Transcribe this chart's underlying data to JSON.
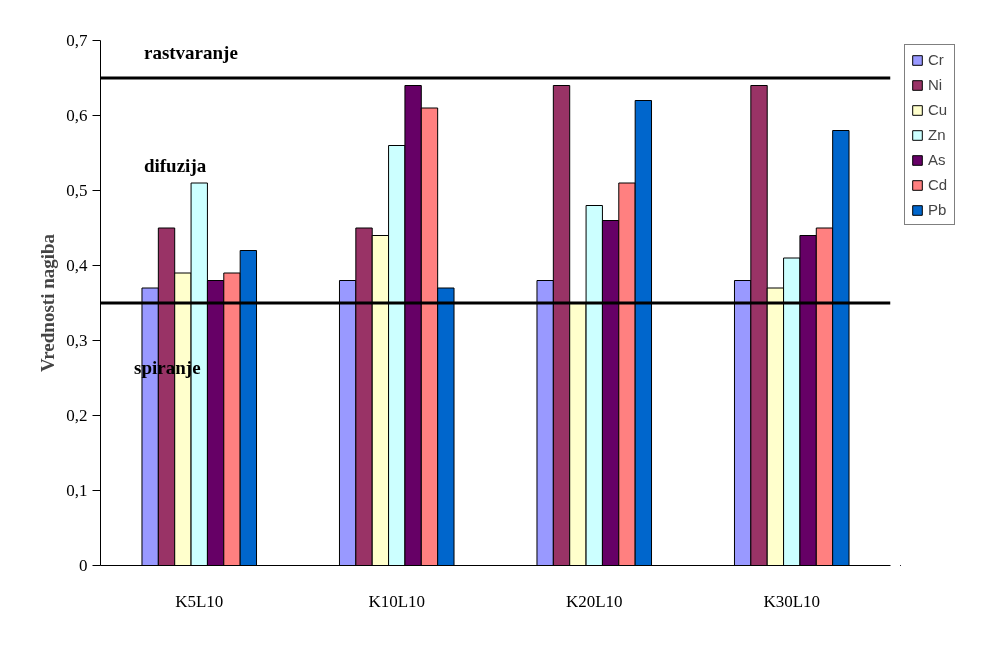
{
  "chart_data": {
    "type": "bar",
    "ylabel": "Vrednosti nagiba",
    "categories": [
      "K5L10",
      "K10L10",
      "K20L10",
      "K30L10"
    ],
    "series": [
      {
        "name": "Cr",
        "color": "#9999ff",
        "values": [
          0.37,
          0.38,
          0.38,
          0.38
        ]
      },
      {
        "name": "Ni",
        "color": "#993366",
        "values": [
          0.45,
          0.45,
          0.64,
          0.64
        ]
      },
      {
        "name": "Cu",
        "color": "#ffffcc",
        "values": [
          0.39,
          0.44,
          0.35,
          0.37
        ]
      },
      {
        "name": "Zn",
        "color": "#ccffff",
        "values": [
          0.51,
          0.56,
          0.48,
          0.41
        ]
      },
      {
        "name": "As",
        "color": "#660066",
        "values": [
          0.38,
          0.64,
          0.46,
          0.44
        ]
      },
      {
        "name": "Cd",
        "color": "#ff8080",
        "values": [
          0.39,
          0.61,
          0.51,
          0.45
        ]
      },
      {
        "name": "Pb",
        "color": "#0066cc",
        "values": [
          0.42,
          0.37,
          0.62,
          0.58
        ]
      }
    ],
    "ylim": [
      0,
      0.7
    ],
    "yticks": [
      {
        "value": 0,
        "label": "0"
      },
      {
        "value": 0.1,
        "label": "0,1"
      },
      {
        "value": 0.2,
        "label": "0,2"
      },
      {
        "value": 0.3,
        "label": "0,3"
      },
      {
        "value": 0.4,
        "label": "0,4"
      },
      {
        "value": 0.5,
        "label": "0,5"
      },
      {
        "value": 0.6,
        "label": "0,6"
      },
      {
        "value": 0.7,
        "label": "0,7"
      }
    ],
    "ref_lines": [
      {
        "axis": "y",
        "value": 0.65,
        "color": "#000000"
      },
      {
        "axis": "y",
        "value": 0.35,
        "color": "#000000"
      }
    ],
    "annotations": [
      "rastvaranje",
      "difuzija",
      "spiranje"
    ],
    "grid": false,
    "legend": "top right"
  }
}
